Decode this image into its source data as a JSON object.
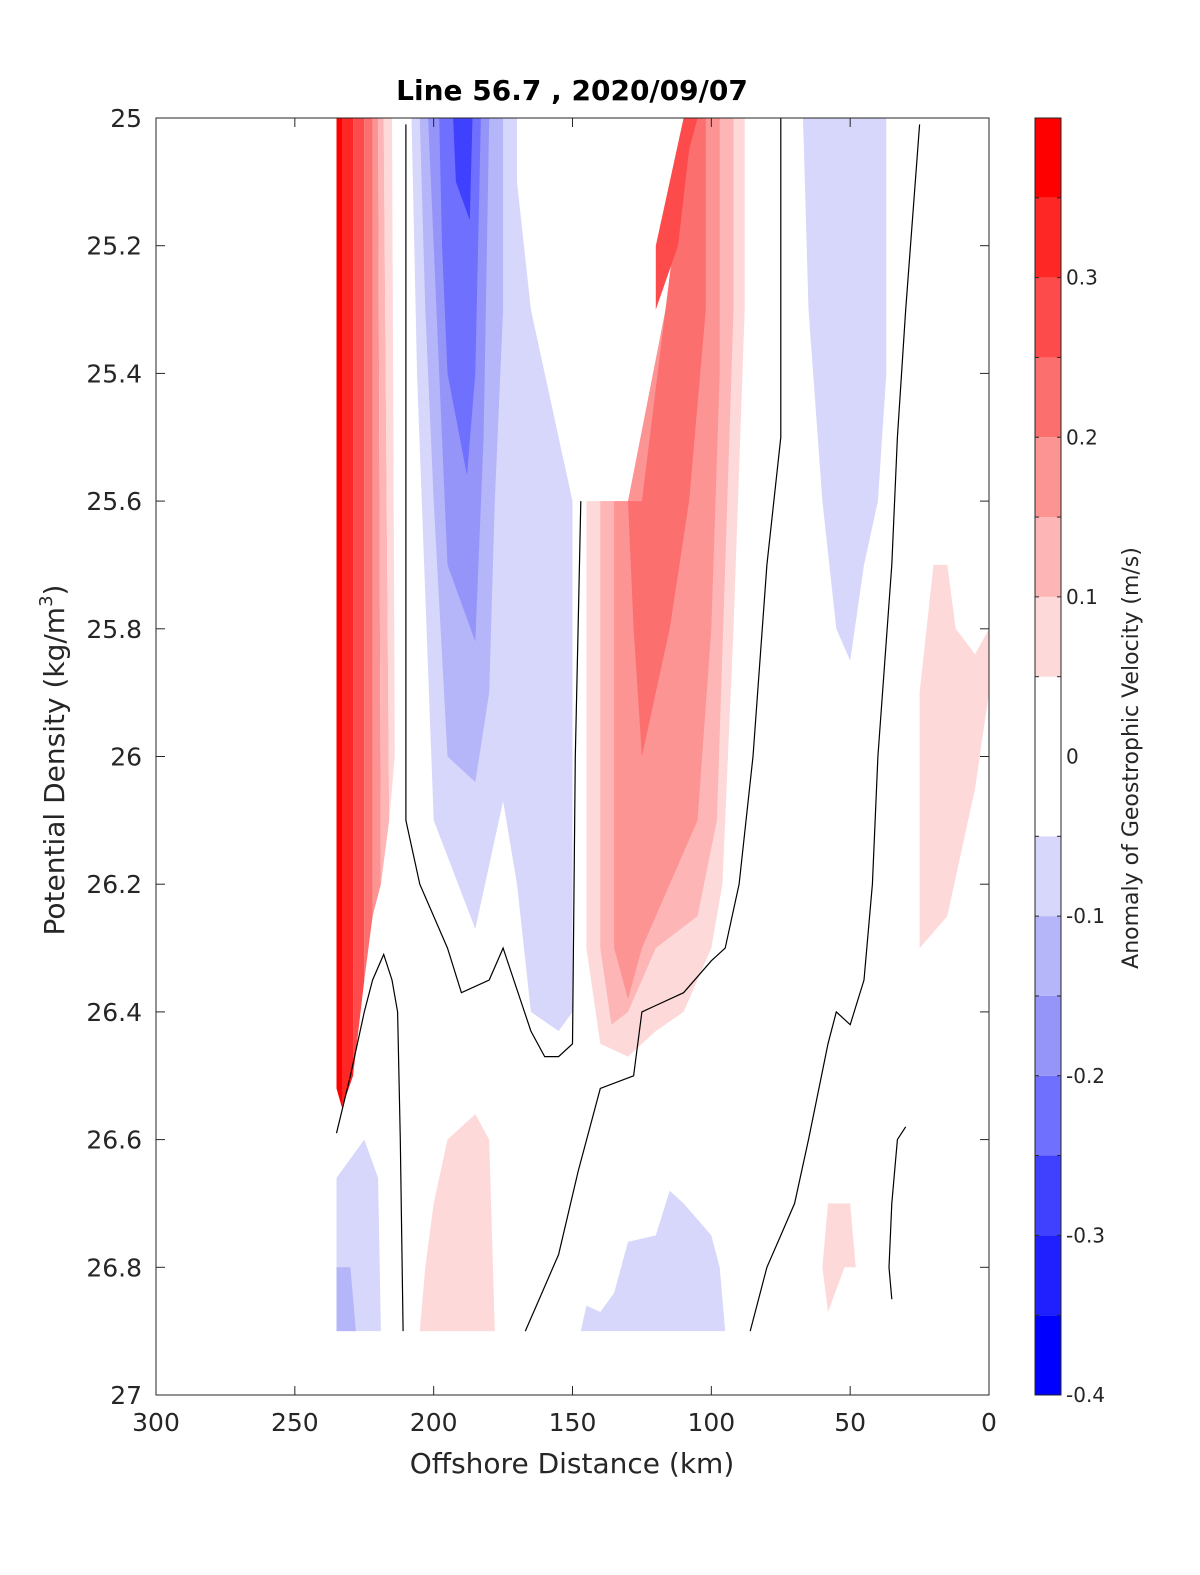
{
  "chart_data": {
    "type": "filled-contour",
    "title": "Line 56.7 , 2020/09/07",
    "xlabel": "Offshore Distance (km)",
    "ylabel_main": "Potential Density (kg/m",
    "ylabel_sup": "3",
    "ylabel_end": ")",
    "colorbar_label": "Anomaly of Geostrophic Velocity (m/s)",
    "xlim": [
      300,
      0
    ],
    "x_reversed": true,
    "ylim": [
      25,
      27
    ],
    "y_reversed": true,
    "x_ticks": [
      300,
      250,
      200,
      150,
      100,
      50,
      0
    ],
    "x_tick_labels": [
      "300",
      "250",
      "200",
      "150",
      "100",
      "50",
      "0"
    ],
    "y_ticks": [
      25,
      25.2,
      25.4,
      25.6,
      25.8,
      26,
      26.2,
      26.4,
      26.6,
      26.8,
      27
    ],
    "y_tick_labels": [
      "25",
      "25.2",
      "25.4",
      "25.6",
      "25.8",
      "26",
      "26.2",
      "26.4",
      "26.6",
      "26.8",
      "27"
    ],
    "colorbar_range": [
      -0.4,
      0.4
    ],
    "colorbar_ticks": [
      -0.4,
      -0.3,
      -0.2,
      -0.1,
      0,
      0.1,
      0.2,
      0.3
    ],
    "colorbar_tick_labels": [
      "-0.4",
      "-0.3",
      "-0.2",
      "-0.1",
      "0",
      "0.1",
      "0.2",
      "0.3"
    ],
    "colorbar_levels": [
      {
        "from": -0.4,
        "to": -0.35,
        "color": "#0000ff"
      },
      {
        "from": -0.35,
        "to": -0.3,
        "color": "#2020ff"
      },
      {
        "from": -0.3,
        "to": -0.25,
        "color": "#4040ff"
      },
      {
        "from": -0.25,
        "to": -0.2,
        "color": "#7070ff"
      },
      {
        "from": -0.2,
        "to": -0.15,
        "color": "#9595f9"
      },
      {
        "from": -0.15,
        "to": -0.1,
        "color": "#b5b5f9"
      },
      {
        "from": -0.1,
        "to": -0.05,
        "color": "#d7d7fb"
      },
      {
        "from": -0.05,
        "to": 0.05,
        "color": "#ffffff"
      },
      {
        "from": 0.05,
        "to": 0.1,
        "color": "#fdd9d9"
      },
      {
        "from": 0.1,
        "to": 0.15,
        "color": "#fdb5b5"
      },
      {
        "from": 0.15,
        "to": 0.2,
        "color": "#fc9494"
      },
      {
        "from": 0.2,
        "to": 0.25,
        "color": "#fc6f6f"
      },
      {
        "from": 0.25,
        "to": 0.3,
        "color": "#fd4b4b"
      },
      {
        "from": 0.3,
        "to": 0.35,
        "color": "#ff2626"
      },
      {
        "from": 0.35,
        "to": 0.4,
        "color": "#ff0000"
      }
    ],
    "regions": [
      {
        "value": 0.35,
        "color": "#ff0000",
        "points": [
          [
            235,
            25
          ],
          [
            233,
            25
          ],
          [
            233,
            26.55
          ],
          [
            235,
            26.52
          ]
        ]
      },
      {
        "value": 0.3,
        "color": "#ff2626",
        "points": [
          [
            233,
            25
          ],
          [
            229,
            25
          ],
          [
            229,
            26.5
          ],
          [
            233,
            26.55
          ]
        ]
      },
      {
        "value": 0.25,
        "color": "#fd4b4b",
        "points": [
          [
            229,
            25
          ],
          [
            225,
            25
          ],
          [
            225,
            26.35
          ],
          [
            229,
            26.5
          ]
        ]
      },
      {
        "value": 0.2,
        "color": "#fc6f6f",
        "points": [
          [
            225,
            25
          ],
          [
            222,
            25
          ],
          [
            222,
            26.25
          ],
          [
            225,
            26.35
          ]
        ]
      },
      {
        "value": 0.15,
        "color": "#fc9494",
        "points": [
          [
            222,
            25
          ],
          [
            220,
            25
          ],
          [
            219,
            26.2
          ],
          [
            222,
            26.25
          ]
        ]
      },
      {
        "value": 0.1,
        "color": "#fdb5b5",
        "points": [
          [
            220,
            25
          ],
          [
            218,
            25
          ],
          [
            216,
            26.1
          ],
          [
            219,
            26.2
          ]
        ]
      },
      {
        "value": 0.05,
        "color": "#fdd9d9",
        "points": [
          [
            218,
            25
          ],
          [
            215,
            25
          ],
          [
            214,
            26.0
          ],
          [
            216,
            26.1
          ]
        ]
      },
      {
        "value": -0.1,
        "color": "#d7d7fb",
        "points": [
          [
            208,
            25
          ],
          [
            170,
            25
          ],
          [
            170,
            25.1
          ],
          [
            165,
            25.3
          ],
          [
            155,
            25.5
          ],
          [
            150,
            25.6
          ],
          [
            150,
            26.4
          ],
          [
            155,
            26.43
          ],
          [
            165,
            26.4
          ],
          [
            170,
            26.2
          ],
          [
            175,
            26.07
          ],
          [
            185,
            26.27
          ],
          [
            200,
            26.1
          ],
          [
            206,
            25.4
          ]
        ]
      },
      {
        "value": -0.15,
        "color": "#b5b5f9",
        "points": [
          [
            205,
            25
          ],
          [
            175,
            25
          ],
          [
            175,
            25.3
          ],
          [
            178,
            25.6
          ],
          [
            180,
            25.9
          ],
          [
            185,
            26.04
          ],
          [
            195,
            26.0
          ],
          [
            200,
            25.6
          ],
          [
            203,
            25.3
          ]
        ]
      },
      {
        "value": -0.2,
        "color": "#9595f9",
        "points": [
          [
            202,
            25
          ],
          [
            180,
            25
          ],
          [
            182,
            25.5
          ],
          [
            185,
            25.82
          ],
          [
            195,
            25.7
          ],
          [
            198,
            25.4
          ],
          [
            200,
            25.2
          ]
        ]
      },
      {
        "value": -0.25,
        "color": "#7070ff",
        "points": [
          [
            198,
            25
          ],
          [
            183,
            25
          ],
          [
            185,
            25.4
          ],
          [
            188,
            25.56
          ],
          [
            195,
            25.4
          ],
          [
            197,
            25.2
          ]
        ]
      },
      {
        "value": -0.3,
        "color": "#4040ff",
        "points": [
          [
            193,
            25
          ],
          [
            186,
            25
          ],
          [
            187,
            25.16
          ],
          [
            192,
            25.1
          ]
        ]
      },
      {
        "value": 0.05,
        "color": "#fdd9d9",
        "points": [
          [
            95,
            25
          ],
          [
            88,
            25
          ],
          [
            88,
            25.3
          ],
          [
            92,
            25.8
          ],
          [
            96,
            26.2
          ],
          [
            100,
            26.3
          ],
          [
            110,
            26.4
          ],
          [
            120,
            26.43
          ],
          [
            130,
            26.47
          ],
          [
            140,
            26.45
          ],
          [
            145,
            26.3
          ],
          [
            145,
            25.6
          ],
          [
            130,
            25.6
          ]
        ]
      },
      {
        "value": 0.1,
        "color": "#fdb5b5",
        "points": [
          [
            98,
            25
          ],
          [
            92,
            25
          ],
          [
            92,
            25.3
          ],
          [
            95,
            25.7
          ],
          [
            98,
            26.1
          ],
          [
            105,
            26.25
          ],
          [
            120,
            26.3
          ],
          [
            130,
            26.4
          ],
          [
            136,
            26.42
          ],
          [
            140,
            26.3
          ],
          [
            140,
            25.6
          ],
          [
            130,
            25.6
          ]
        ]
      },
      {
        "value": 0.15,
        "color": "#fc9494",
        "points": [
          [
            103,
            25
          ],
          [
            97,
            25
          ],
          [
            97,
            25.4
          ],
          [
            100,
            25.8
          ],
          [
            105,
            26.1
          ],
          [
            115,
            26.2
          ],
          [
            125,
            26.3
          ],
          [
            130,
            26.38
          ],
          [
            135,
            26.3
          ],
          [
            135,
            25.6
          ],
          [
            130,
            25.6
          ]
        ]
      },
      {
        "value": 0.2,
        "color": "#fc6f6f",
        "points": [
          [
            108,
            25
          ],
          [
            102,
            25
          ],
          [
            102,
            25.3
          ],
          [
            108,
            25.6
          ],
          [
            115,
            25.8
          ],
          [
            120,
            25.9
          ],
          [
            125,
            26.0
          ],
          [
            128,
            25.8
          ],
          [
            130,
            25.6
          ],
          [
            125,
            25.6
          ]
        ]
      },
      {
        "value": 0.25,
        "color": "#fd4b4b",
        "points": [
          [
            110,
            25
          ],
          [
            105,
            25
          ],
          [
            108,
            25.05
          ],
          [
            112,
            25.2
          ],
          [
            120,
            25.3
          ],
          [
            120,
            25.2
          ],
          [
            115,
            25.1
          ]
        ]
      },
      {
        "value": -0.1,
        "color": "#d7d7fb",
        "points": [
          [
            67,
            25
          ],
          [
            37,
            25
          ],
          [
            37,
            25.4
          ],
          [
            40,
            25.6
          ],
          [
            45,
            25.7
          ],
          [
            50,
            25.85
          ],
          [
            55,
            25.8
          ],
          [
            60,
            25.6
          ],
          [
            65,
            25.3
          ]
        ]
      },
      {
        "value": 0.05,
        "color": "#fdd9d9",
        "points": [
          [
            20,
            25.7
          ],
          [
            15,
            25.7
          ],
          [
            12,
            25.8
          ],
          [
            5,
            25.84
          ],
          [
            0,
            25.8
          ],
          [
            0,
            25.9
          ],
          [
            5,
            26.05
          ],
          [
            10,
            26.15
          ],
          [
            15,
            26.25
          ],
          [
            25,
            26.3
          ],
          [
            25,
            25.9
          ]
        ]
      },
      {
        "value": -0.1,
        "color": "#d7d7fb",
        "points": [
          [
            235,
            26.66
          ],
          [
            230,
            26.63
          ],
          [
            225,
            26.6
          ],
          [
            220,
            26.66
          ],
          [
            219,
            26.9
          ],
          [
            235,
            26.9
          ]
        ]
      },
      {
        "value": -0.15,
        "color": "#b5b5f9",
        "points": [
          [
            235,
            26.8
          ],
          [
            230,
            26.8
          ],
          [
            228,
            26.9
          ],
          [
            235,
            26.9
          ]
        ]
      },
      {
        "value": 0.05,
        "color": "#fdd9d9",
        "points": [
          [
            200,
            26.7
          ],
          [
            195,
            26.6
          ],
          [
            185,
            26.56
          ],
          [
            180,
            26.6
          ],
          [
            178,
            26.9
          ],
          [
            205,
            26.9
          ],
          [
            203,
            26.8
          ]
        ]
      },
      {
        "value": -0.1,
        "color": "#d7d7fb",
        "points": [
          [
            147,
            26.9
          ],
          [
            95,
            26.9
          ],
          [
            97,
            26.8
          ],
          [
            100,
            26.75
          ],
          [
            110,
            26.7
          ],
          [
            115,
            26.68
          ],
          [
            120,
            26.75
          ],
          [
            130,
            26.76
          ],
          [
            135,
            26.84
          ],
          [
            140,
            26.87
          ],
          [
            145,
            26.86
          ]
        ]
      },
      {
        "value": 0.05,
        "color": "#fdd9d9",
        "points": [
          [
            58,
            26.7
          ],
          [
            50,
            26.7
          ],
          [
            48,
            26.8
          ],
          [
            52,
            26.8
          ],
          [
            58,
            26.87
          ],
          [
            60,
            26.8
          ]
        ]
      }
    ],
    "zero_contours": [
      {
        "points": [
          [
            210,
            25.01
          ],
          [
            210,
            25.5
          ],
          [
            210,
            26.1
          ],
          [
            205,
            26.2
          ],
          [
            195,
            26.3
          ],
          [
            190,
            26.37
          ],
          [
            180,
            26.35
          ],
          [
            175,
            26.3
          ],
          [
            165,
            26.43
          ],
          [
            160,
            26.47
          ],
          [
            155,
            26.47
          ],
          [
            150,
            26.45
          ],
          [
            149,
            26.0
          ],
          [
            148,
            25.8
          ],
          [
            147,
            25.6
          ]
        ]
      },
      {
        "points": [
          [
            75,
            25
          ],
          [
            75,
            25.5
          ],
          [
            80,
            25.7
          ],
          [
            85,
            26.0
          ],
          [
            90,
            26.2
          ],
          [
            95,
            26.3
          ],
          [
            100,
            26.32
          ],
          [
            110,
            26.37
          ],
          [
            120,
            26.39
          ],
          [
            125,
            26.4
          ],
          [
            128,
            26.5
          ],
          [
            140,
            26.52
          ],
          [
            148,
            26.65
          ],
          [
            155,
            26.78
          ],
          [
            162,
            26.85
          ],
          [
            167,
            26.9
          ]
        ]
      },
      {
        "points": [
          [
            25,
            25.01
          ],
          [
            30,
            25.3
          ],
          [
            33,
            25.5
          ],
          [
            35,
            25.7
          ],
          [
            40,
            26.0
          ],
          [
            42,
            26.2
          ],
          [
            45,
            26.35
          ],
          [
            50,
            26.42
          ],
          [
            55,
            26.4
          ],
          [
            58,
            26.45
          ],
          [
            65,
            26.6
          ],
          [
            70,
            26.7
          ],
          [
            75,
            26.75
          ],
          [
            80,
            26.8
          ],
          [
            86,
            26.9
          ]
        ]
      },
      {
        "points": [
          [
            235,
            26.59
          ],
          [
            230,
            26.5
          ],
          [
            225,
            26.4
          ],
          [
            222,
            26.35
          ],
          [
            218,
            26.31
          ],
          [
            215,
            26.35
          ],
          [
            213,
            26.4
          ],
          [
            212,
            26.6
          ],
          [
            211,
            26.9
          ]
        ]
      },
      {
        "points": [
          [
            30,
            26.58
          ],
          [
            33,
            26.6
          ],
          [
            35,
            26.7
          ],
          [
            36,
            26.8
          ],
          [
            35,
            26.85
          ]
        ]
      }
    ]
  }
}
